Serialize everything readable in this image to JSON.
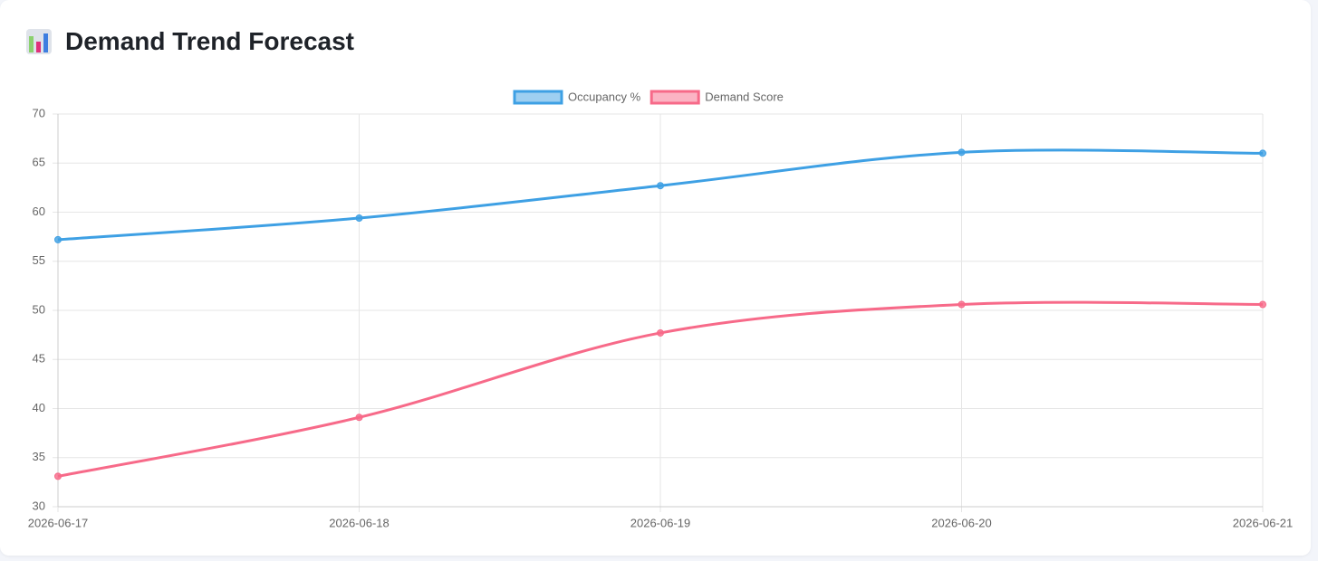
{
  "title": "Demand Trend Forecast",
  "chart_data": {
    "type": "line",
    "categories": [
      "2026-06-17",
      "2026-06-18",
      "2026-06-19",
      "2026-06-20",
      "2026-06-21"
    ],
    "series": [
      {
        "name": "Occupancy %",
        "color": "#3ea0e4",
        "values": [
          57.2,
          59.4,
          62.7,
          66.1,
          66.0
        ]
      },
      {
        "name": "Demand Score",
        "color": "#f76a89",
        "values": [
          33.1,
          39.1,
          47.7,
          50.6,
          50.6
        ]
      }
    ],
    "ylim": [
      30,
      70
    ],
    "yticks": [
      30,
      35,
      40,
      45,
      50,
      55,
      60,
      65,
      70
    ],
    "grid": true,
    "legend": "top"
  }
}
